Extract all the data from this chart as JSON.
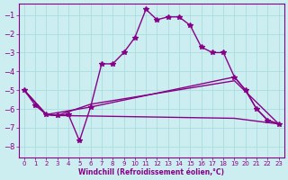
{
  "xlabel": "Windchill (Refroidissement éolien,°C)",
  "background_color": "#cceef0",
  "grid_color": "#aadddd",
  "line_color": "#880088",
  "xlim": [
    -0.5,
    23.5
  ],
  "ylim": [
    -8.6,
    -0.4
  ],
  "yticks": [
    -8,
    -7,
    -6,
    -5,
    -4,
    -3,
    -2,
    -1
  ],
  "xticks": [
    0,
    1,
    2,
    3,
    4,
    5,
    6,
    7,
    8,
    9,
    10,
    11,
    12,
    13,
    14,
    15,
    16,
    17,
    18,
    19,
    20,
    21,
    22,
    23
  ],
  "curve_x": [
    0,
    1,
    2,
    3,
    4,
    5,
    6,
    7,
    8,
    9,
    10,
    11,
    12,
    13,
    14,
    15,
    16,
    17,
    18,
    19,
    20,
    21,
    22,
    23
  ],
  "curve_y": [
    -5.0,
    -5.8,
    -6.3,
    -6.35,
    -6.3,
    -7.7,
    -5.9,
    -3.6,
    -3.6,
    -3.0,
    -2.2,
    -0.7,
    -1.25,
    -1.1,
    -1.1,
    -1.55,
    -2.7,
    -3.0,
    -3.0,
    -4.3,
    -5.0,
    -6.0,
    -6.6,
    -6.8
  ],
  "line2_x": [
    0,
    2,
    6,
    19,
    20,
    21,
    22,
    23
  ],
  "line2_y": [
    -5.0,
    -6.3,
    -5.9,
    -4.3,
    -5.0,
    -6.0,
    -6.6,
    -6.8
  ],
  "line3_x": [
    0,
    2,
    3,
    6,
    19,
    23
  ],
  "line3_y": [
    -5.0,
    -6.3,
    -6.35,
    -5.75,
    -4.5,
    -6.8
  ],
  "line4_x": [
    0,
    2,
    3,
    19,
    23
  ],
  "line4_y": [
    -5.0,
    -6.3,
    -6.35,
    -6.5,
    -6.8
  ],
  "marker": "*",
  "markersize": 4,
  "linewidth": 1.0,
  "tickfont": 5,
  "xlabelfont": 5.5
}
